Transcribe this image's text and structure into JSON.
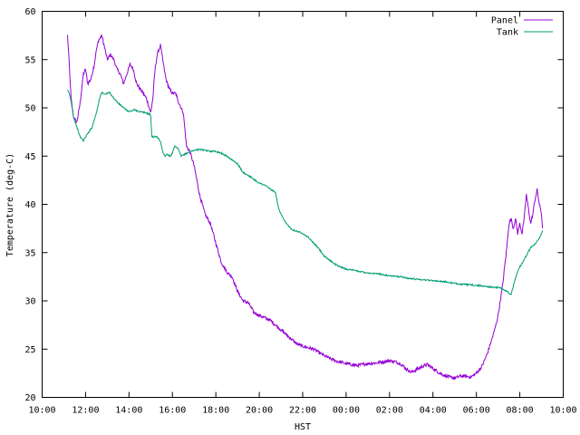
{
  "chart_data": {
    "type": "line",
    "title": "",
    "xlabel": "HST",
    "ylabel": "Temperature (deg-C)",
    "xlim": [
      10,
      34
    ],
    "ylim": [
      20,
      60
    ],
    "x_ticks": [
      {
        "value": 10,
        "label": "10:00"
      },
      {
        "value": 12,
        "label": "12:00"
      },
      {
        "value": 14,
        "label": "14:00"
      },
      {
        "value": 16,
        "label": "16:00"
      },
      {
        "value": 18,
        "label": "18:00"
      },
      {
        "value": 20,
        "label": "20:00"
      },
      {
        "value": 22,
        "label": "22:00"
      },
      {
        "value": 24,
        "label": "00:00"
      },
      {
        "value": 26,
        "label": "02:00"
      },
      {
        "value": 28,
        "label": "04:00"
      },
      {
        "value": 30,
        "label": "06:00"
      },
      {
        "value": 32,
        "label": "08:00"
      },
      {
        "value": 34,
        "label": "10:00"
      }
    ],
    "y_ticks": [
      20,
      25,
      30,
      35,
      40,
      45,
      50,
      55,
      60
    ],
    "grid": false,
    "legend_position": "top-right",
    "series": [
      {
        "name": "Panel",
        "color": "#9400d3",
        "x": [
          11.17,
          11.25,
          11.33,
          11.45,
          11.6,
          11.75,
          11.9,
          12.0,
          12.1,
          12.25,
          12.4,
          12.5,
          12.6,
          12.75,
          12.9,
          13.0,
          13.15,
          13.3,
          13.45,
          13.6,
          13.75,
          13.9,
          14.05,
          14.2,
          14.35,
          14.5,
          14.65,
          14.8,
          15.0,
          15.1,
          15.2,
          15.3,
          15.45,
          15.55,
          15.7,
          15.85,
          16.0,
          16.15,
          16.3,
          16.5,
          16.65,
          16.8,
          17.0,
          17.25,
          17.5,
          17.75,
          18.0,
          18.25,
          18.5,
          18.75,
          19.0,
          19.25,
          19.5,
          19.75,
          20.0,
          20.5,
          21.0,
          21.25,
          21.5,
          21.75,
          22.0,
          22.5,
          23.0,
          23.5,
          24.0,
          24.5,
          25.0,
          25.5,
          26.0,
          26.25,
          26.5,
          26.75,
          27.0,
          27.25,
          27.5,
          27.75,
          28.0,
          28.25,
          28.5,
          28.75,
          29.0,
          29.25,
          29.5,
          29.75,
          30.0,
          30.25,
          30.5,
          30.75,
          30.9,
          31.0,
          31.1,
          31.2,
          31.3,
          31.4,
          31.5,
          31.6,
          31.7,
          31.8,
          31.9,
          32.0,
          32.1,
          32.2,
          32.3,
          32.4,
          32.5,
          32.6,
          32.7,
          32.8,
          32.9,
          33.0,
          33.05
        ],
        "values": [
          57.5,
          54.5,
          51.0,
          49.0,
          48.5,
          50.5,
          53.5,
          54.0,
          52.5,
          53.0,
          54.5,
          56.0,
          57.0,
          57.5,
          56.0,
          55.0,
          55.5,
          55.0,
          54.0,
          53.5,
          52.5,
          53.5,
          54.5,
          54.0,
          52.5,
          52.0,
          51.5,
          51.0,
          49.5,
          51.0,
          54.0,
          55.5,
          56.5,
          55.0,
          53.0,
          52.0,
          51.5,
          51.5,
          50.5,
          49.5,
          46.0,
          45.5,
          44.0,
          41.0,
          39.0,
          38.0,
          36.0,
          34.0,
          33.0,
          32.5,
          31.0,
          30.0,
          29.8,
          28.8,
          28.5,
          28.0,
          27.0,
          26.5,
          26.0,
          25.5,
          25.3,
          25.0,
          24.3,
          23.8,
          23.5,
          23.3,
          23.5,
          23.6,
          23.8,
          23.7,
          23.5,
          23.0,
          22.6,
          22.9,
          23.2,
          23.4,
          23.0,
          22.6,
          22.3,
          22.1,
          22.0,
          22.2,
          22.2,
          22.1,
          22.5,
          23.2,
          24.5,
          26.3,
          27.5,
          28.5,
          30.0,
          31.5,
          33.5,
          35.5,
          38.0,
          38.5,
          37.5,
          38.5,
          37.0,
          38.0,
          37.0,
          38.5,
          41.0,
          39.5,
          38.0,
          39.0,
          40.5,
          41.5,
          40.0,
          39.0,
          37.5
        ]
      },
      {
        "name": "Tank",
        "color": "#009e73",
        "x": [
          11.17,
          11.25,
          11.35,
          11.45,
          11.6,
          11.75,
          11.9,
          12.0,
          12.15,
          12.3,
          12.5,
          12.65,
          12.75,
          12.9,
          13.1,
          13.3,
          13.5,
          13.75,
          14.0,
          14.25,
          14.5,
          14.75,
          15.0,
          15.05,
          15.15,
          15.3,
          15.45,
          15.55,
          15.65,
          15.75,
          15.9,
          16.0,
          16.1,
          16.25,
          16.4,
          16.5,
          16.75,
          17.0,
          17.25,
          17.5,
          17.75,
          18.0,
          18.25,
          18.5,
          18.75,
          19.0,
          19.25,
          19.5,
          19.75,
          20.0,
          20.25,
          20.5,
          20.75,
          20.9,
          21.0,
          21.1,
          21.25,
          21.5,
          21.75,
          22.0,
          22.25,
          22.5,
          22.75,
          23.0,
          23.25,
          23.5,
          23.75,
          24.0,
          24.5,
          25.0,
          25.5,
          26.0,
          26.5,
          27.0,
          27.5,
          28.0,
          28.5,
          29.0,
          29.5,
          30.0,
          30.5,
          30.75,
          31.0,
          31.25,
          31.4,
          31.5,
          31.6,
          31.75,
          31.9,
          32.0,
          32.25,
          32.5,
          32.75,
          32.9,
          33.0,
          33.05
        ],
        "values": [
          51.8,
          51.5,
          50.5,
          49.0,
          48.0,
          47.0,
          46.6,
          47.0,
          47.5,
          48.0,
          49.5,
          51.0,
          51.6,
          51.4,
          51.6,
          51.0,
          50.5,
          50.0,
          49.6,
          49.8,
          49.6,
          49.5,
          49.3,
          47.0,
          47.0,
          47.0,
          46.5,
          45.5,
          45.0,
          45.2,
          45.0,
          45.3,
          46.0,
          45.8,
          45.0,
          45.1,
          45.4,
          45.6,
          45.7,
          45.6,
          45.5,
          45.5,
          45.3,
          45.0,
          44.6,
          44.2,
          43.3,
          43.0,
          42.6,
          42.2,
          42.0,
          41.6,
          41.2,
          39.5,
          39.0,
          38.5,
          38.0,
          37.4,
          37.2,
          37.0,
          36.6,
          36.0,
          35.4,
          34.6,
          34.2,
          33.8,
          33.5,
          33.3,
          33.1,
          32.9,
          32.8,
          32.6,
          32.5,
          32.3,
          32.2,
          32.1,
          32.0,
          31.8,
          31.7,
          31.6,
          31.5,
          31.4,
          31.4,
          31.2,
          31.0,
          30.8,
          30.6,
          32.0,
          33.0,
          33.5,
          34.5,
          35.5,
          36.0,
          36.5,
          37.0,
          37.3
        ]
      }
    ]
  }
}
